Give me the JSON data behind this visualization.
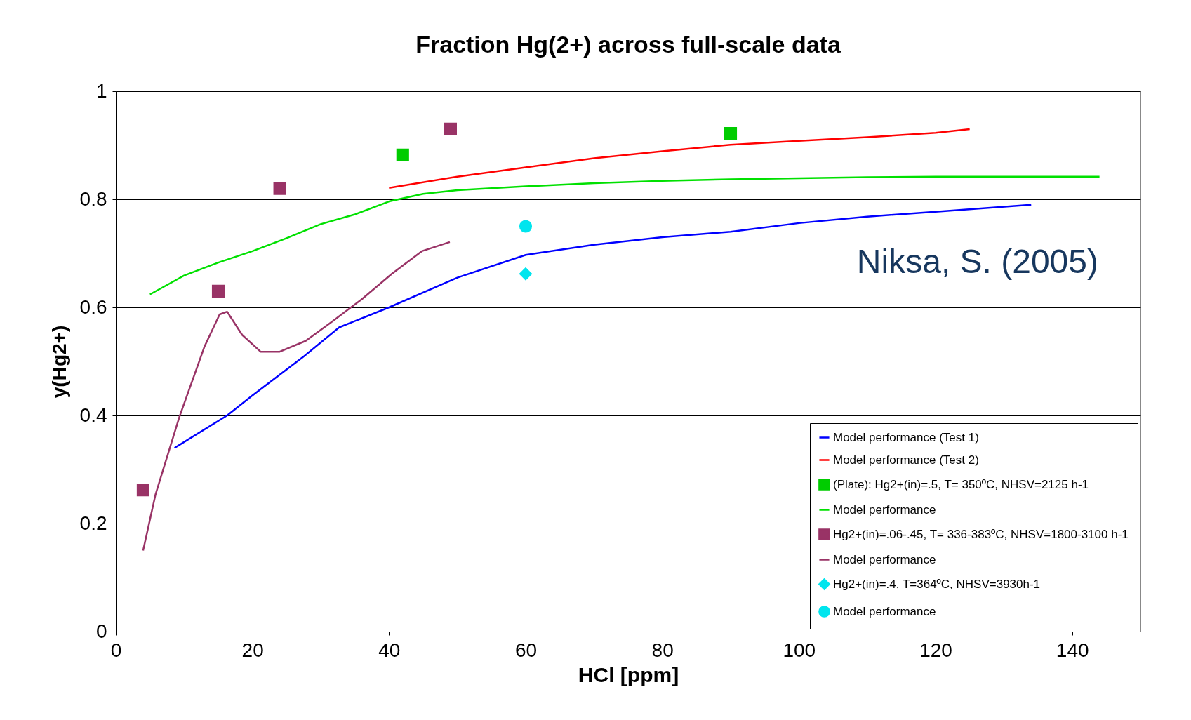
{
  "chart_data": {
    "type": "line",
    "title": "Fraction Hg(2+) across full-scale data",
    "xlabel": "HCl [ppm]",
    "ylabel": "y(Hg2+)",
    "xlim": [
      0,
      150
    ],
    "xticks": [
      0,
      20,
      40,
      60,
      80,
      100,
      120,
      140
    ],
    "ylim": [
      0,
      1
    ],
    "yticks": [
      0,
      0.2,
      0.4,
      0.6,
      0.8,
      1
    ],
    "grid": "y",
    "legend": "bottom right",
    "annotations": [
      "Niksa, S. (2005)"
    ],
    "series": [
      {
        "name": "Model performance (Test 1)",
        "color": "#0000ff",
        "x": [
          8.6,
          16.3,
          20,
          27.3,
          32.7,
          40,
          50,
          60,
          70,
          80,
          90,
          100,
          110,
          120,
          134
        ],
        "values": [
          0.34,
          0.4,
          0.437,
          0.507,
          0.563,
          0.6,
          0.655,
          0.697,
          0.716,
          0.73,
          0.74,
          0.756,
          0.768,
          0.777,
          0.79
        ]
      },
      {
        "name": "Model performance (Test 2)",
        "color": "#ff0000",
        "x": [
          40,
          50,
          60,
          70,
          80,
          90,
          100,
          110,
          120,
          125
        ],
        "values": [
          0.821,
          0.842,
          0.859,
          0.876,
          0.889,
          0.901,
          0.908,
          0.915,
          0.923,
          0.93
        ]
      },
      {
        "name": "(Plate): Hg2+(in)=.5, T= 350ºC, NHSV=2125 h-1",
        "type": "scatter",
        "color": "#00cc00",
        "marker": "square",
        "x": [
          42,
          90
        ],
        "values": [
          0.882,
          0.922
        ]
      },
      {
        "name": "Model performance",
        "color": "#00e000",
        "x": [
          5,
          10,
          15,
          20,
          25,
          30,
          35,
          40,
          45,
          50,
          60,
          70,
          80,
          90,
          100,
          110,
          120,
          130,
          144
        ],
        "values": [
          0.624,
          0.659,
          0.683,
          0.704,
          0.728,
          0.754,
          0.772,
          0.796,
          0.81,
          0.817,
          0.824,
          0.83,
          0.834,
          0.837,
          0.839,
          0.841,
          0.842,
          0.842,
          0.842
        ]
      },
      {
        "name": "Hg2+(in)=.06-.45, T= 336-383ºC, NHSV=1800-3100 h-1",
        "type": "scatter",
        "color": "#993366",
        "marker": "square",
        "x": [
          4,
          15,
          24,
          49
        ],
        "values": [
          0.262,
          0.63,
          0.82,
          0.93
        ]
      },
      {
        "name": "Model performance",
        "color": "#993366",
        "x": [
          4,
          5.8,
          9.3,
          13,
          15.2,
          16.3,
          18.5,
          21.2,
          24,
          27.8,
          31.6,
          36,
          40.4,
          44.8,
          48.9
        ],
        "values": [
          0.15,
          0.253,
          0.397,
          0.528,
          0.587,
          0.592,
          0.549,
          0.518,
          0.518,
          0.538,
          0.573,
          0.615,
          0.662,
          0.704,
          0.721
        ]
      },
      {
        "name": "Hg2+(in)=.4, T=364ºC, NHSV=3930h-1",
        "type": "scatter",
        "color": "#00e5ee",
        "marker": "diamond",
        "x": [
          60
        ],
        "values": [
          0.662
        ]
      },
      {
        "name": "Model performance",
        "type": "scatter",
        "color": "#00e5ee",
        "marker": "circle",
        "x": [
          60
        ],
        "values": [
          0.75
        ]
      }
    ]
  }
}
